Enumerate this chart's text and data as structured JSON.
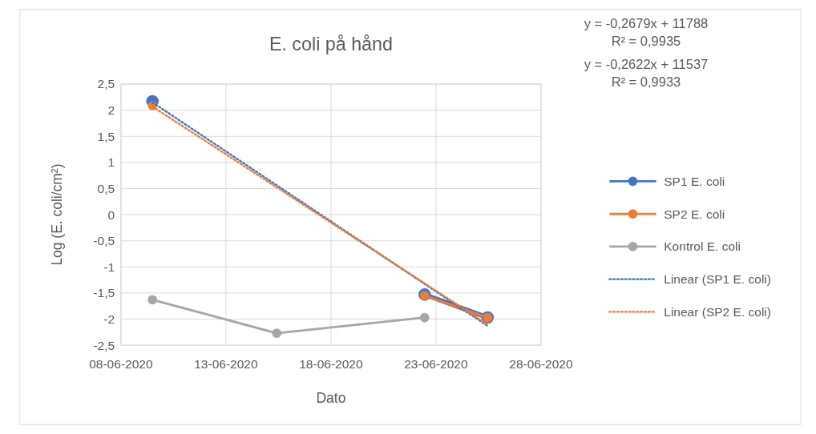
{
  "chart_data": {
    "type": "line",
    "title": "E. coli på hånd",
    "xlabel": "Dato",
    "ylabel": "Log (E. coli/cm²)",
    "x": [
      "2020-06-09T12:00",
      "2020-06-15T10:00",
      "2020-06-22T11:00",
      "2020-06-25T11:00"
    ],
    "series": [
      {
        "name": "SP1 E. coli",
        "color": "#4472c4",
        "values": [
          2.17,
          null,
          -1.53,
          -1.97
        ],
        "marker": "circle",
        "line_style": "solid"
      },
      {
        "name": "SP2 E. coli",
        "color": "#ed7d31",
        "values": [
          2.09,
          null,
          -1.55,
          -1.97
        ],
        "marker": "circle",
        "line_style": "solid"
      },
      {
        "name": "Kontrol E. coli",
        "color": "#a5a5a5",
        "values": [
          -1.63,
          -2.27,
          -1.97,
          null
        ],
        "marker": "circle",
        "line_style": "solid"
      },
      {
        "name": "Linear (SP1 E. coli)",
        "color": "#4472c4",
        "x": [
          "2020-06-09T12:00",
          "2020-06-25T11:00"
        ],
        "values": [
          2.15,
          -2.13
        ],
        "marker": "none",
        "line_style": "dotted"
      },
      {
        "name": "Linear (SP2 E. coli)",
        "color": "#ed7d31",
        "x": [
          "2020-06-09T12:00",
          "2020-06-25T11:00"
        ],
        "values": [
          2.07,
          -2.1
        ],
        "marker": "none",
        "line_style": "dotted"
      }
    ],
    "xlim": [
      "2020-06-08",
      "2020-06-28"
    ],
    "xticks": [
      {
        "value": "2020-06-08",
        "label": "08-06-2020"
      },
      {
        "value": "2020-06-13",
        "label": "13-06-2020"
      },
      {
        "value": "2020-06-18",
        "label": "18-06-2020"
      },
      {
        "value": "2020-06-23",
        "label": "23-06-2020"
      },
      {
        "value": "2020-06-28",
        "label": "28-06-2020"
      }
    ],
    "ylim": [
      -2.5,
      2.5
    ],
    "yticks": [
      {
        "value": -2.5,
        "label": "-2,5"
      },
      {
        "value": -2,
        "label": "-2"
      },
      {
        "value": -1.5,
        "label": "-1,5"
      },
      {
        "value": -1,
        "label": "-1"
      },
      {
        "value": -0.5,
        "label": "-0,5"
      },
      0,
      {
        "value": 0.5,
        "label": "0,5"
      },
      1,
      {
        "value": 1.5,
        "label": "1,5"
      },
      2,
      {
        "value": 2.5,
        "label": "2,5"
      }
    ],
    "grid": true,
    "legend": "right",
    "annotations": [
      "y = -0,2679x + 11788",
      "R² = 0,9935",
      "y = -0,2622x + 11537",
      "R² = 0,9933"
    ]
  }
}
